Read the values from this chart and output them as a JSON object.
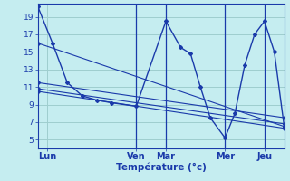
{
  "title": "",
  "xlabel": "Température (°c)",
  "ylabel": "",
  "bg_color": "#c5edf0",
  "grid_color": "#9ecece",
  "line_color": "#1a3aaa",
  "spine_color": "#1a3aaa",
  "yticks": [
    5,
    7,
    9,
    11,
    13,
    15,
    17,
    19
  ],
  "ylim": [
    4.0,
    20.5
  ],
  "xlim": [
    0,
    100
  ],
  "xtick_positions": [
    4,
    40,
    52,
    76,
    92
  ],
  "xtick_labels": [
    "Lun",
    "Ven",
    "Mar",
    "Mer",
    "Jeu"
  ],
  "vlines": [
    40,
    52,
    76,
    92
  ],
  "series": [
    {
      "x": [
        0,
        6,
        12,
        18,
        24,
        30,
        40,
        52,
        58,
        62,
        66,
        70,
        76,
        80,
        84,
        88,
        92,
        96,
        100
      ],
      "y": [
        20.2,
        16.0,
        11.5,
        10.0,
        9.5,
        9.2,
        8.8,
        18.5,
        15.5,
        14.8,
        11.0,
        7.5,
        5.2,
        8.0,
        13.5,
        17.0,
        18.5,
        15.0,
        6.5
      ]
    },
    {
      "x": [
        0,
        100
      ],
      "y": [
        16.0,
        6.5
      ]
    },
    {
      "x": [
        0,
        100
      ],
      "y": [
        11.5,
        7.5
      ]
    },
    {
      "x": [
        0,
        100
      ],
      "y": [
        10.8,
        6.8
      ]
    },
    {
      "x": [
        0,
        100
      ],
      "y": [
        10.5,
        6.3
      ]
    }
  ]
}
